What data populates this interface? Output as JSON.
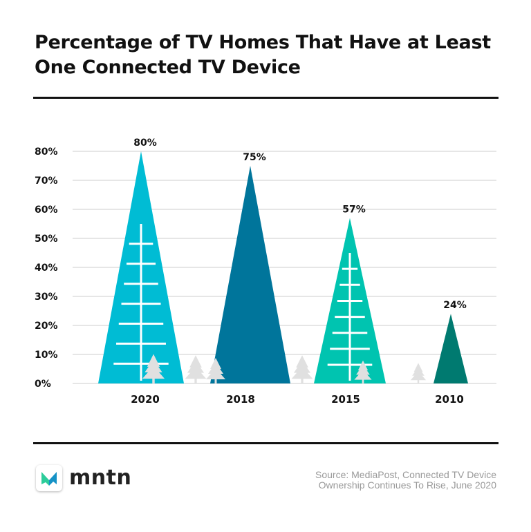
{
  "title": "Percentage of TV Homes That Have at Least One Connected TV Device",
  "brand": "mntn",
  "source_line1": "Source: MediaPost, Connected TV Device",
  "source_line2": "Ownership Continues To Rise, June 2020",
  "chart_data": {
    "type": "bar",
    "mark_shape": "triangle",
    "categories": [
      "2020",
      "2018",
      "2015",
      "2010"
    ],
    "values": [
      80,
      75,
      57,
      24
    ],
    "data_labels": [
      "80%",
      "75%",
      "57%",
      "24%"
    ],
    "ylim": [
      0,
      80
    ],
    "yticks": [
      0,
      10,
      20,
      30,
      40,
      50,
      60,
      70,
      80
    ],
    "ytick_labels": [
      "0%",
      "10%",
      "20%",
      "30%",
      "40%",
      "50%",
      "60%",
      "70%",
      "80%"
    ],
    "grid": true,
    "colors": [
      "#00bcd4",
      "#00759b",
      "#00c4b0",
      "#007a70"
    ],
    "decoration_color": "#e0e0e0"
  }
}
